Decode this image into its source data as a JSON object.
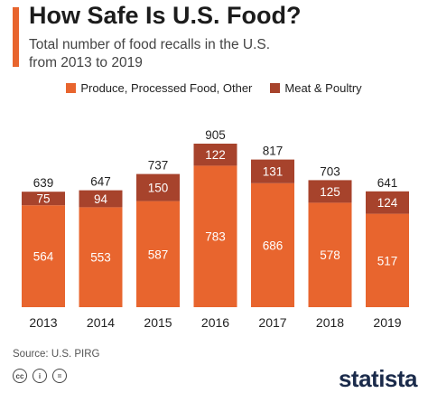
{
  "header": {
    "title": "How Safe Is U.S. Food?",
    "subtitle": "Total number of food recalls in the U.S. from 2013 to 2019"
  },
  "colors": {
    "produce": "#e8652e",
    "meat": "#a7432c",
    "accent": "#e8652e"
  },
  "footer": {
    "source": "Source: U.S. PIRG",
    "icons": [
      "cc-icon",
      "by-icon",
      "nd-icon"
    ],
    "brand": "statista"
  },
  "chart_data": {
    "type": "bar",
    "stacked": true,
    "categories": [
      "2013",
      "2014",
      "2015",
      "2016",
      "2017",
      "2018",
      "2019"
    ],
    "series": [
      {
        "name": "Produce, Processed Food, Other",
        "values": [
          564,
          553,
          587,
          783,
          686,
          578,
          517
        ]
      },
      {
        "name": "Meat & Poultry",
        "values": [
          75,
          94,
          150,
          122,
          131,
          125,
          124
        ]
      }
    ],
    "totals": [
      639,
      647,
      737,
      905,
      817,
      703,
      641
    ],
    "title": "How Safe Is U.S. Food?",
    "ylim": [
      0,
      905
    ],
    "grid": false,
    "legend": "top-center"
  }
}
